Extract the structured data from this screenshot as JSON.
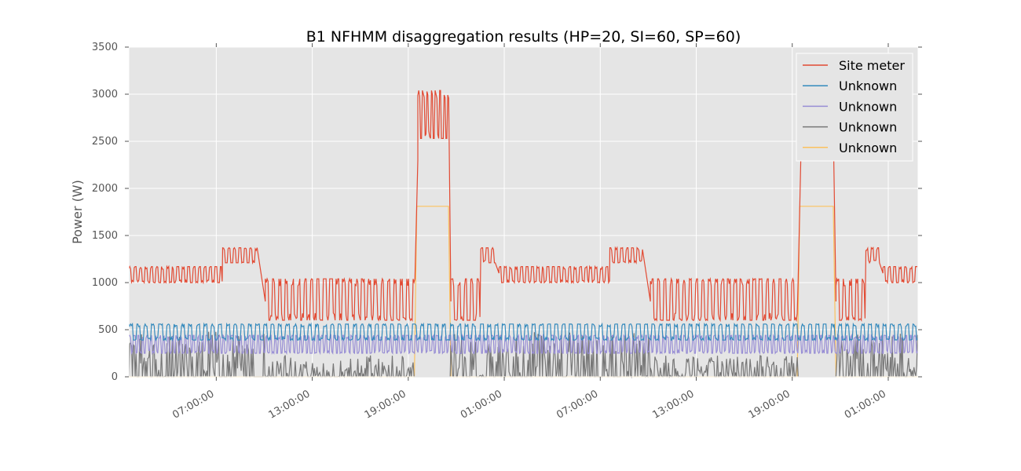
{
  "chart_data": {
    "type": "line",
    "title": "B1 NFHMM disaggregation results (HP=20, SI=60, SP=60)",
    "ylabel": "Power (W)",
    "xlabel": "",
    "ylim": [
      0,
      3500
    ],
    "yticks": [
      0,
      500,
      1000,
      1500,
      2000,
      2500,
      3000,
      3500
    ],
    "xlim": [
      -8.2,
      65.8
    ],
    "xticks": [
      {
        "value": 0,
        "label": "07:00:00"
      },
      {
        "value": 9,
        "label": "13:00:00"
      },
      {
        "value": 18,
        "label": "19:00:00"
      },
      {
        "value": 27,
        "label": "01:00:00"
      },
      {
        "value": 36,
        "label": "07:00:00"
      },
      {
        "value": 45,
        "label": "13:00:00"
      },
      {
        "value": 54,
        "label": "19:00:00"
      },
      {
        "value": 63,
        "label": "01:00:00"
      }
    ],
    "x_units": "hours since the first 07:00:00 tick",
    "grid": true,
    "legend_position": "top-right",
    "series": [
      {
        "name": "Site meter",
        "color": "#E24A33",
        "segments": [
          {
            "start": -8.2,
            "end": 0.6,
            "low": 1000,
            "high": 1170,
            "period": 0.5
          },
          {
            "start": 0.6,
            "end": 3.9,
            "low": 1210,
            "high": 1370,
            "period": 0.5
          },
          {
            "start": 3.9,
            "end": 4.6,
            "ramp_to": 800
          },
          {
            "start": 4.6,
            "end": 18.7,
            "low": 600,
            "high": 1040,
            "period": 0.6
          },
          {
            "start": 18.7,
            "end": 18.9,
            "ramp_to": 2300
          },
          {
            "start": 18.9,
            "end": 21.8,
            "low": 2530,
            "high": 3040,
            "period": 0.4
          },
          {
            "start": 21.8,
            "end": 22.0,
            "ramp_to": 800
          },
          {
            "start": 22.0,
            "end": 24.8,
            "low": 600,
            "high": 1040,
            "period": 0.6
          },
          {
            "start": 24.8,
            "end": 26.2,
            "low": 1210,
            "high": 1370,
            "period": 0.5
          },
          {
            "start": 26.2,
            "end": 26.5,
            "ramp_to": 1100
          },
          {
            "start": 26.5,
            "end": 36.9,
            "low": 1000,
            "high": 1170,
            "period": 0.5
          },
          {
            "start": 36.9,
            "end": 40.0,
            "low": 1210,
            "high": 1370,
            "period": 0.5
          },
          {
            "start": 40.0,
            "end": 40.7,
            "ramp_to": 800
          },
          {
            "start": 40.7,
            "end": 54.6,
            "low": 600,
            "high": 1040,
            "period": 0.6
          },
          {
            "start": 54.6,
            "end": 54.8,
            "ramp_to": 2300
          },
          {
            "start": 54.8,
            "end": 57.9,
            "low": 2530,
            "high": 3040,
            "period": 0.4
          },
          {
            "start": 57.9,
            "end": 58.1,
            "ramp_to": 800
          },
          {
            "start": 58.1,
            "end": 60.9,
            "low": 600,
            "high": 1040,
            "period": 0.6
          },
          {
            "start": 60.9,
            "end": 62.2,
            "low": 1210,
            "high": 1370,
            "period": 0.5
          },
          {
            "start": 62.2,
            "end": 62.5,
            "ramp_to": 1100
          },
          {
            "start": 62.5,
            "end": 65.8,
            "low": 1000,
            "high": 1170,
            "period": 0.5
          }
        ]
      },
      {
        "name": "Unknown",
        "color": "#348ABD",
        "segments": [
          {
            "start": -8.2,
            "end": 65.8,
            "low": 390,
            "high": 560,
            "period": 0.7
          }
        ]
      },
      {
        "name": "Unknown",
        "color": "#988ED5",
        "segments": [
          {
            "start": -8.2,
            "end": 65.8,
            "low": 250,
            "high": 440,
            "period": 0.4
          }
        ]
      },
      {
        "name": "Unknown",
        "color": "#777777",
        "segments": [
          {
            "start": -8.2,
            "end": 4.6,
            "low": 0,
            "high": 480,
            "period": 0.3
          },
          {
            "start": 4.6,
            "end": 18.7,
            "low": 0,
            "high": 230,
            "period": 0.9
          },
          {
            "start": 18.7,
            "end": 22.0,
            "low": 0,
            "high": 0,
            "period": 1
          },
          {
            "start": 22.0,
            "end": 40.7,
            "low": 0,
            "high": 480,
            "period": 0.3
          },
          {
            "start": 40.7,
            "end": 54.6,
            "low": 0,
            "high": 230,
            "period": 0.9
          },
          {
            "start": 54.6,
            "end": 58.1,
            "low": 0,
            "high": 0,
            "period": 1
          },
          {
            "start": 58.1,
            "end": 65.8,
            "low": 0,
            "high": 480,
            "period": 0.3
          }
        ]
      },
      {
        "name": "Unknown",
        "color": "#FBC15E",
        "segments": [
          {
            "start": -8.2,
            "end": 18.6,
            "low": 0,
            "high": 0,
            "period": 1
          },
          {
            "start": 18.6,
            "end": 18.8,
            "ramp_to": 1810
          },
          {
            "start": 18.8,
            "end": 21.8,
            "low": 1810,
            "high": 1810,
            "period": 1
          },
          {
            "start": 21.8,
            "end": 22.0,
            "ramp_to": 0
          },
          {
            "start": 22.0,
            "end": 54.5,
            "low": 0,
            "high": 0,
            "period": 1
          },
          {
            "start": 54.5,
            "end": 54.7,
            "ramp_to": 1810
          },
          {
            "start": 54.7,
            "end": 57.9,
            "low": 1810,
            "high": 1810,
            "period": 1
          },
          {
            "start": 57.9,
            "end": 58.1,
            "ramp_to": 0
          },
          {
            "start": 58.1,
            "end": 65.8,
            "low": 0,
            "high": 0,
            "period": 1
          }
        ]
      }
    ]
  }
}
